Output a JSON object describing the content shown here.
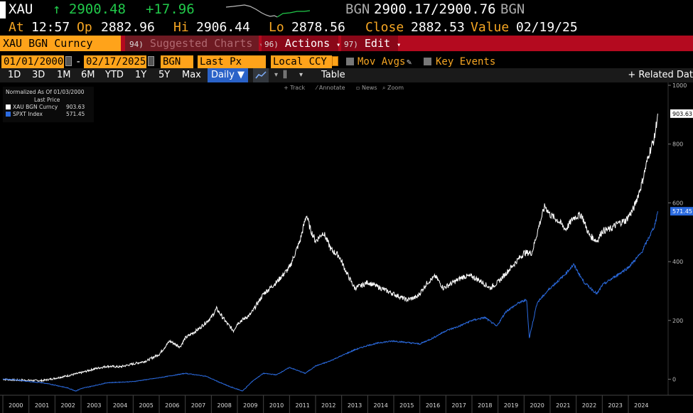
{
  "header": {
    "ticker": "XAU",
    "last": "↑ 2900.48",
    "change": "+17.96",
    "bgn_label": "BGN",
    "bid_ask": "2900.17/2900.76",
    "bgn_label2": "BGN",
    "at_label": "At",
    "time": "12:57",
    "op_label": "Op",
    "open": "2882.96",
    "hi_label": "Hi",
    "high": "2906.44",
    "lo_label": "Lo",
    "low": "2878.56",
    "close_label": "Close",
    "close": "2882.53",
    "value_label": "Value",
    "value_date": "02/19/25"
  },
  "menu": {
    "security": "XAU BGN Curncy",
    "suggested_num": "94)",
    "suggested": "Suggested Charts",
    "actions_num": "96)",
    "actions": "Actions",
    "edit_num": "97)",
    "edit": "Edit"
  },
  "controls": {
    "start_date": "01/01/2000",
    "dash": "-",
    "end_date": "02/17/2025",
    "source": "BGN",
    "field": "Last Px",
    "currency": "Local CCY",
    "mov_avgs": "Mov Avgs",
    "key_events": "Key Events"
  },
  "ranges": {
    "buttons": [
      "1D",
      "3D",
      "1M",
      "6M",
      "YTD",
      "1Y",
      "5Y",
      "Max"
    ],
    "daily": "Daily ▼",
    "table": "Table",
    "related": "+ Related Dat"
  },
  "toolbar": {
    "track": "Track",
    "annotate": "Annotate",
    "news": "News",
    "zoom": "Zoom"
  },
  "colors": {
    "gold": "#ffffff",
    "spx": "#2b6be0",
    "accent": "#ffa31a",
    "menu_red": "#b40a1f",
    "up_green": "#21c94a"
  },
  "chart_data": {
    "type": "line",
    "legend_title": "Normalized As Of 01/03/2000",
    "legend_subtitle": "Last Price",
    "legend_position": "top-left",
    "xlabels": [
      "2000",
      "2001",
      "2002",
      "2003",
      "2004",
      "2005",
      "2006",
      "2007",
      "2008",
      "2009",
      "2010",
      "2011",
      "2012",
      "2013",
      "2014",
      "2015",
      "2016",
      "2017",
      "2018",
      "2019",
      "2020",
      "2021",
      "2022",
      "2023",
      "2024"
    ],
    "yticks": [
      0,
      200,
      400,
      600,
      800,
      1000
    ],
    "ylim": [
      -40,
      1000
    ],
    "xlim": [
      2000.0,
      2025.2
    ],
    "grid": false,
    "series": [
      {
        "name": "XAU BGN Curncy",
        "last_label": "903.63",
        "color": "#ffffff",
        "x": [
          2000.0,
          2000.5,
          2001.0,
          2001.5,
          2002.0,
          2002.5,
          2003.0,
          2003.5,
          2004.0,
          2004.5,
          2005.0,
          2005.5,
          2006.0,
          2006.4,
          2006.8,
          2007.0,
          2007.5,
          2008.0,
          2008.2,
          2008.6,
          2008.85,
          2009.0,
          2009.5,
          2010.0,
          2010.5,
          2011.0,
          2011.4,
          2011.65,
          2011.8,
          2012.0,
          2012.3,
          2012.6,
          2012.9,
          2013.2,
          2013.5,
          2013.8,
          2014.0,
          2014.5,
          2015.0,
          2015.5,
          2015.9,
          2016.3,
          2016.6,
          2016.9,
          2017.3,
          2017.7,
          2018.0,
          2018.4,
          2018.7,
          2019.0,
          2019.5,
          2020.0,
          2020.3,
          2020.6,
          2020.8,
          2021.0,
          2021.3,
          2021.6,
          2021.9,
          2022.2,
          2022.5,
          2022.8,
          2023.0,
          2023.3,
          2023.6,
          2023.9,
          2024.2,
          2024.5,
          2024.8,
          2025.0,
          2025.13
        ],
        "y": [
          0,
          -3,
          -4,
          -5,
          3,
          12,
          22,
          35,
          44,
          42,
          52,
          62,
          85,
          130,
          110,
          140,
          170,
          210,
          240,
          190,
          165,
          190,
          220,
          290,
          330,
          380,
          470,
          560,
          510,
          470,
          500,
          440,
          420,
          360,
          310,
          320,
          330,
          310,
          290,
          270,
          280,
          330,
          350,
          310,
          330,
          350,
          350,
          330,
          310,
          330,
          380,
          430,
          430,
          530,
          590,
          560,
          540,
          510,
          550,
          560,
          490,
          470,
          505,
          510,
          530,
          540,
          580,
          660,
          770,
          820,
          903.63
        ]
      },
      {
        "name": "SPXT Index",
        "last_label": "571.45",
        "color": "#2b6be0",
        "x": [
          2000.0,
          2000.5,
          2001.0,
          2001.5,
          2002.0,
          2002.5,
          2002.8,
          2003.0,
          2003.5,
          2004.0,
          2004.5,
          2005.0,
          2006.0,
          2007.0,
          2007.8,
          2008.3,
          2008.7,
          2009.2,
          2009.6,
          2010.0,
          2010.5,
          2011.0,
          2011.6,
          2012.0,
          2012.5,
          2013.0,
          2013.5,
          2014.0,
          2014.5,
          2015.0,
          2015.5,
          2016.0,
          2016.5,
          2017.0,
          2017.5,
          2018.0,
          2018.5,
          2018.95,
          2019.3,
          2019.8,
          2020.1,
          2020.2,
          2020.5,
          2021.0,
          2021.5,
          2021.9,
          2022.3,
          2022.8,
          2023.0,
          2023.5,
          2024.0,
          2024.5,
          2025.0,
          2025.13
        ],
        "y": [
          0,
          -2,
          -8,
          -12,
          -20,
          -30,
          -40,
          -32,
          -22,
          -12,
          -10,
          -8,
          5,
          20,
          10,
          -10,
          -25,
          -40,
          -5,
          20,
          15,
          40,
          20,
          45,
          60,
          80,
          100,
          115,
          125,
          130,
          125,
          120,
          140,
          165,
          180,
          200,
          210,
          180,
          230,
          260,
          270,
          140,
          260,
          310,
          350,
          390,
          330,
          290,
          320,
          350,
          380,
          430,
          520,
          571.45
        ]
      }
    ]
  }
}
